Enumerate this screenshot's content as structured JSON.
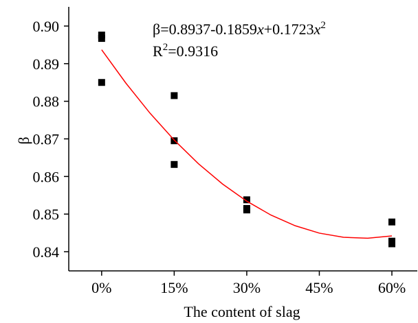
{
  "chart_data": {
    "type": "scatter",
    "x_label": "The content of slag",
    "y_label": "β",
    "annotation": [
      [
        "β=0.8937-0.1859",
        "x",
        "+0.1723",
        "x",
        "2"
      ],
      [
        "R",
        "2",
        "=0.9316"
      ]
    ],
    "xlim": [
      -6.8,
      65.4
    ],
    "xticks": [
      {
        "value": 0,
        "label": "0%"
      },
      {
        "value": 15,
        "label": "15%"
      },
      {
        "value": 30,
        "label": "30%"
      },
      {
        "value": 45,
        "label": "45%"
      },
      {
        "value": 60,
        "label": "60%"
      }
    ],
    "ylim": [
      0.8349,
      0.9051
    ],
    "yticks": [
      0.84,
      0.85,
      0.86,
      0.87,
      0.88,
      0.89,
      {
        "value": 0.9,
        "label": "0.90"
      }
    ],
    "series": [
      {
        "type": "scatter",
        "color": "#000000",
        "x": [
          0,
          0,
          0,
          15,
          15,
          15,
          30,
          30,
          30,
          60,
          60,
          60
        ],
        "values": [
          0.8976,
          0.8967,
          0.885,
          0.8815,
          0.8695,
          0.8632,
          0.8538,
          0.8515,
          0.8511,
          0.8479,
          0.8428,
          0.8421
        ]
      },
      {
        "type": "line",
        "color": "#ff0000",
        "x": [
          0,
          5,
          10,
          15,
          20,
          25,
          30,
          35,
          40,
          45,
          50,
          55,
          60
        ],
        "values": [
          0.8937,
          0.88484,
          0.87683,
          0.86969,
          0.86341,
          0.85799,
          0.85344,
          0.84974,
          0.84691,
          0.84494,
          0.84383,
          0.84358,
          0.84419
        ]
      }
    ]
  }
}
